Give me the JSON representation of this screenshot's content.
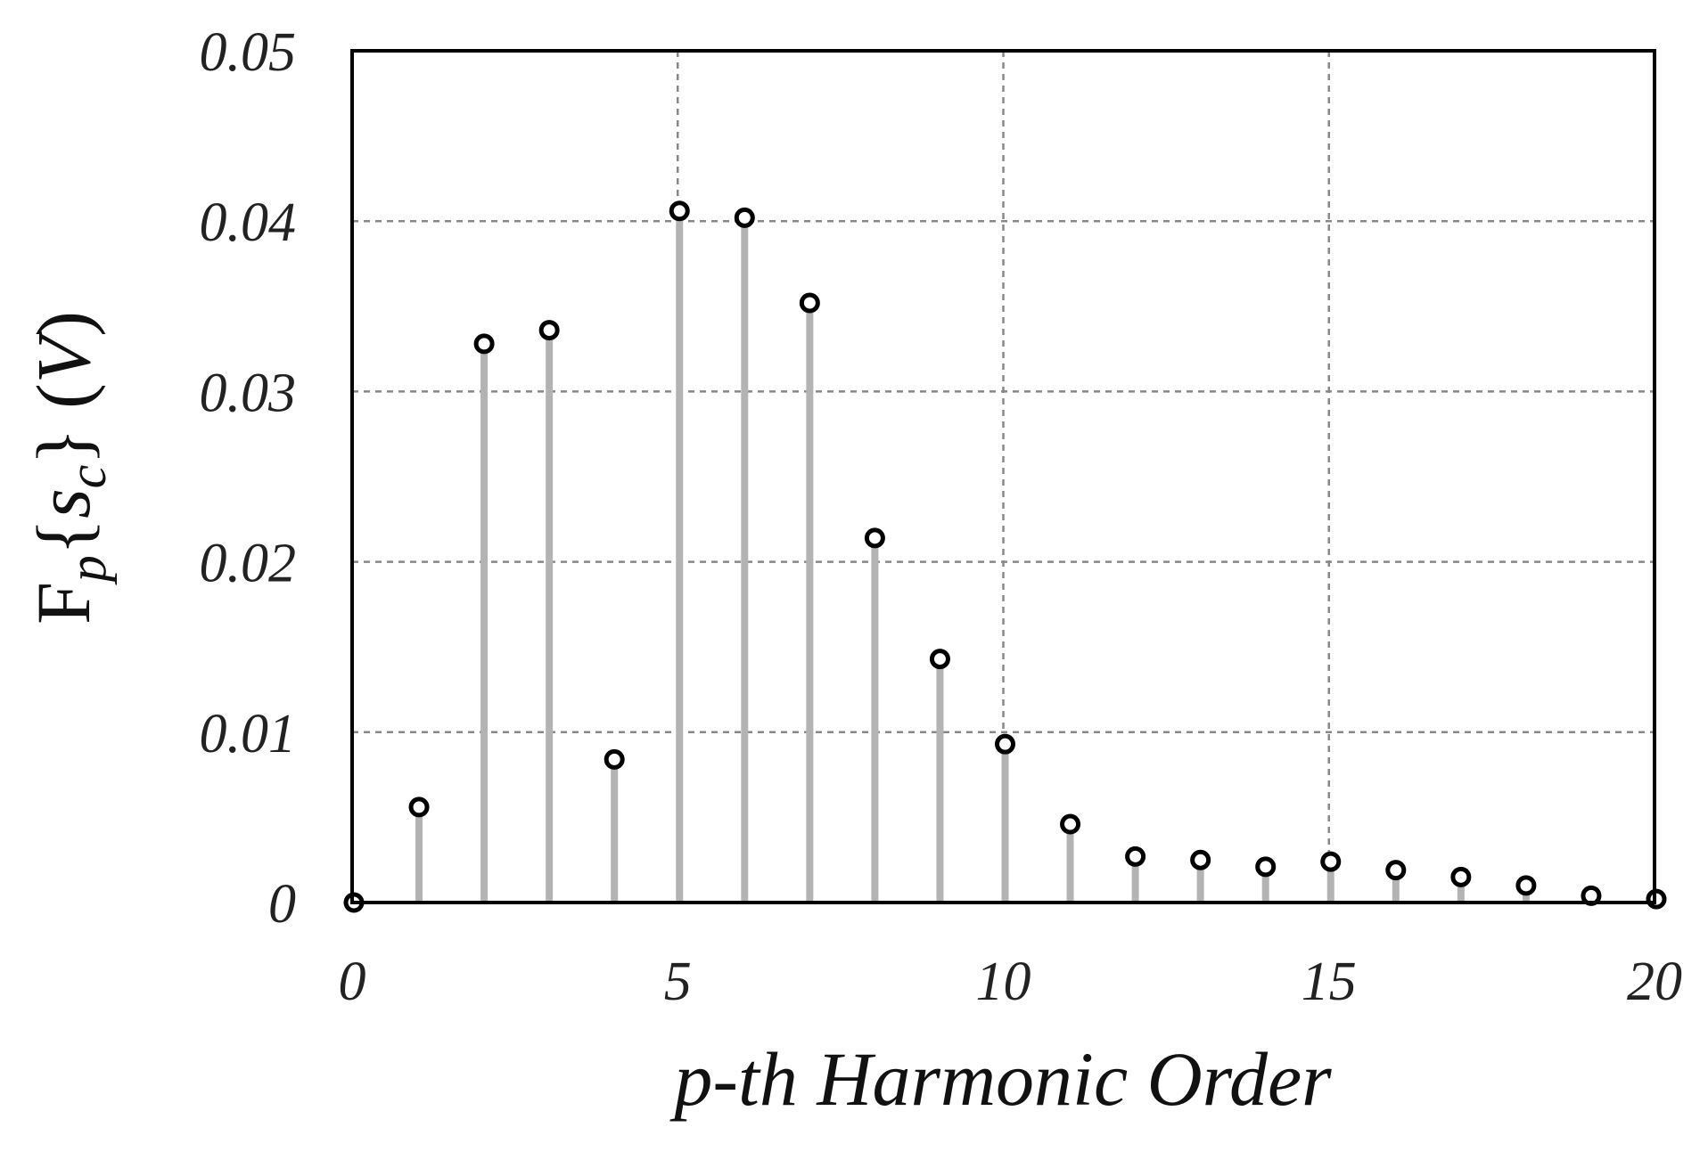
{
  "chart_data": {
    "type": "stem",
    "xlabel": "p-th Harmonic Order",
    "ylabel": [
      "F",
      "p",
      "{",
      "s",
      "c",
      "} (",
      "V",
      ")"
    ],
    "x": [
      0,
      1,
      2,
      3,
      4,
      5,
      6,
      7,
      8,
      9,
      10,
      11,
      12,
      13,
      14,
      15,
      16,
      17,
      18,
      19,
      20
    ],
    "values": [
      0,
      0.0056,
      0.0328,
      0.0336,
      0.0084,
      0.0406,
      0.0402,
      0.0352,
      0.0214,
      0.0143,
      0.0093,
      0.0046,
      0.0027,
      0.0025,
      0.0021,
      0.0024,
      0.0019,
      0.0015,
      0.001,
      0.0004,
      0.0002
    ],
    "color": "#b3b3b3",
    "xlim": [
      0,
      20
    ],
    "xticks": [
      0,
      5,
      10,
      15,
      20
    ],
    "ylim": [
      0,
      0.05
    ],
    "yticks": [
      0,
      0.01,
      0.02,
      0.03,
      0.04,
      0.05
    ],
    "grid": true
  }
}
